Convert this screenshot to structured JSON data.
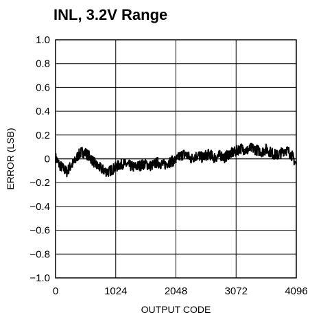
{
  "chart_data": {
    "type": "line",
    "title": "INL, 3.2V Range",
    "xlabel": "OUTPUT CODE",
    "ylabel": "ERROR (LSB)",
    "xlim": [
      0,
      4096
    ],
    "ylim": [
      -1.0,
      1.0
    ],
    "x_ticks": [
      "0",
      "1024",
      "2048",
      "3072",
      "4096"
    ],
    "y_ticks": [
      "1.0",
      "0.8",
      "0.6",
      "0.4",
      "0.2",
      "0",
      "−0.2",
      "−0.4",
      "−0.6",
      "−0.8",
      "−1.0"
    ],
    "grid": true,
    "line_color": "#000000",
    "series": [
      {
        "x": [
          0,
          64,
          128,
          192,
          256,
          320,
          384,
          448,
          512,
          576,
          640,
          704,
          768,
          832,
          896,
          960,
          1024,
          1088,
          1152,
          1216,
          1280,
          1344,
          1408,
          1472,
          1536,
          1600,
          1664,
          1728,
          1792,
          1856,
          1920,
          1984,
          2048,
          2112,
          2176,
          2240,
          2304,
          2368,
          2432,
          2496,
          2560,
          2624,
          2688,
          2752,
          2816,
          2880,
          2944,
          3008,
          3072,
          3136,
          3200,
          3264,
          3328,
          3392,
          3456,
          3520,
          3584,
          3648,
          3712,
          3776,
          3840,
          3904,
          3968,
          4032,
          4096
        ],
        "y": [
          0.01,
          -0.05,
          -0.08,
          -0.11,
          -0.06,
          -0.03,
          0.03,
          0.06,
          0.05,
          0.02,
          -0.02,
          -0.06,
          -0.08,
          -0.1,
          -0.11,
          -0.09,
          -0.07,
          -0.05,
          -0.04,
          -0.05,
          -0.06,
          -0.07,
          -0.06,
          -0.05,
          -0.04,
          -0.06,
          -0.05,
          -0.03,
          -0.04,
          -0.05,
          -0.03,
          -0.02,
          -0.01,
          0.02,
          0.04,
          0.03,
          0.0,
          0.02,
          0.03,
          0.01,
          0.03,
          0.04,
          0.01,
          0.02,
          0.03,
          0.01,
          0.04,
          0.05,
          0.06,
          0.09,
          0.08,
          0.07,
          0.09,
          0.08,
          0.07,
          0.06,
          0.08,
          0.06,
          0.04,
          0.03,
          0.05,
          0.08,
          0.06,
          0.02,
          -0.05
        ]
      }
    ]
  }
}
